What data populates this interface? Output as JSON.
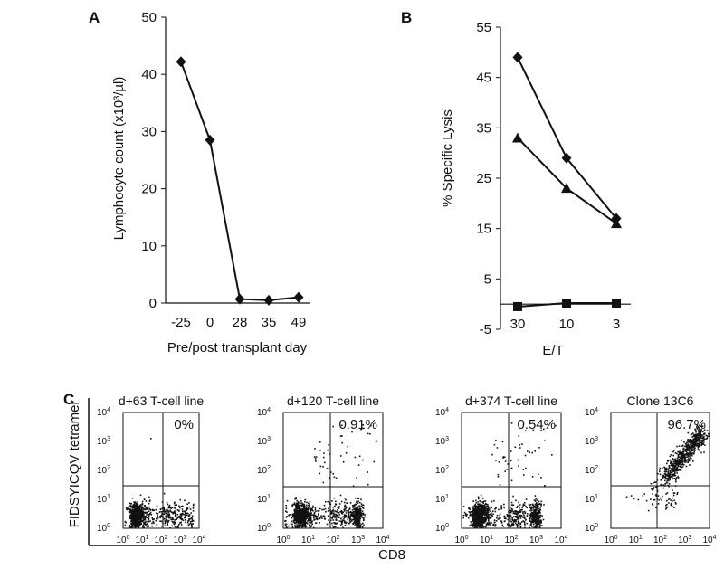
{
  "chart_data": [
    {
      "panel": "A",
      "type": "line",
      "xlabel": "Pre/post transplant day",
      "ylabel": "Lymphocyte count (x10³/µl)",
      "categories": [
        "-25",
        "0",
        "28",
        "35",
        "49"
      ],
      "ylim": [
        0,
        50
      ],
      "yticks": [
        0,
        10,
        20,
        30,
        40,
        50
      ],
      "series": [
        {
          "name": "Lymphocyte count",
          "marker": "diamond",
          "values": [
            42.2,
            28.5,
            0.7,
            0.5,
            1.0
          ]
        }
      ]
    },
    {
      "panel": "B",
      "type": "line",
      "xlabel": "E/T",
      "ylabel": "% Specific Lysis",
      "categories": [
        "30",
        "10",
        "3"
      ],
      "ylim": [
        -5,
        55
      ],
      "yticks": [
        -5,
        5,
        15,
        25,
        35,
        45,
        55
      ],
      "series": [
        {
          "name": "diamond series",
          "marker": "diamond",
          "values": [
            49,
            29,
            17
          ]
        },
        {
          "name": "triangle series",
          "marker": "triangle",
          "values": [
            33,
            23,
            16
          ]
        },
        {
          "name": "square series",
          "marker": "square",
          "values": [
            -0.5,
            0.2,
            0.2
          ]
        }
      ]
    },
    {
      "panel": "C",
      "type": "scatter",
      "xlabel": "CD8",
      "ylabel": "FIDSYICQV tetramer",
      "axis_scale": "log",
      "tick_labels": [
        "10",
        "10",
        "10",
        "10",
        "10"
      ],
      "tick_exponents": [
        "0",
        "1",
        "2",
        "3",
        "4"
      ],
      "plots": [
        {
          "title": "d+63 T-cell line",
          "percent": "0%"
        },
        {
          "title": "d+120 T-cell line",
          "percent": "0.91%"
        },
        {
          "title": "d+374 T-cell line",
          "percent": "0.54%"
        },
        {
          "title": "Clone 13C6",
          "percent": "96.7%"
        }
      ]
    }
  ],
  "panel_labels": {
    "a": "A",
    "b": "B",
    "c": "C"
  },
  "colors": {
    "ink": "#111111",
    "background": "#ffffff"
  }
}
